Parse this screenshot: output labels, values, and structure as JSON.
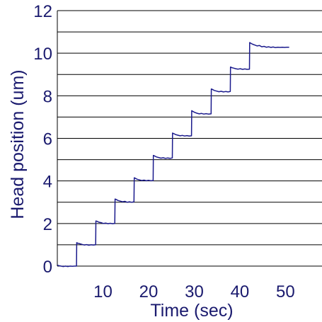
{
  "chart_data": {
    "type": "line",
    "title": "",
    "xlabel": "Time (sec)",
    "ylabel": "Head position (um)",
    "xlim": [
      0,
      58
    ],
    "ylim": [
      0,
      12
    ],
    "x_ticks": [
      10,
      20,
      30,
      40,
      50
    ],
    "x_tick_labels": [
      "10",
      "20",
      "30",
      "40",
      "50"
    ],
    "y_ticks": [
      0,
      2,
      4,
      6,
      8,
      10,
      12
    ],
    "y_tick_labels": [
      "0",
      "2",
      "4",
      "6",
      "8",
      "10",
      "12"
    ],
    "grid": {
      "horizontal": true,
      "vertical": false,
      "step": 1
    },
    "colors": {
      "series": "#1a1a8c",
      "text": "#1a1a6e",
      "grid": "#000000"
    },
    "series": [
      {
        "x": [
          0,
          0.3,
          0.8,
          1.3,
          1.8,
          2.3,
          2.8,
          3.3,
          3.8,
          4.2,
          4.25,
          4.55,
          4.9,
          5.4,
          5.9,
          6.4,
          6.9,
          7.4,
          7.9,
          8.4,
          8.45,
          8.75,
          9.1,
          9.6,
          10.1,
          10.6,
          11.1,
          11.6,
          12.1,
          12.6,
          12.65,
          12.95,
          13.3,
          13.8,
          14.3,
          14.8,
          15.3,
          15.8,
          16.3,
          16.8,
          16.85,
          17.15,
          17.5,
          18.0,
          18.5,
          19.0,
          19.5,
          20.0,
          20.5,
          21.0,
          21.05,
          21.35,
          21.7,
          22.2,
          22.7,
          23.2,
          23.7,
          24.2,
          24.7,
          25.2,
          25.25,
          25.55,
          25.9,
          26.4,
          26.9,
          27.4,
          27.9,
          28.4,
          28.9,
          29.4,
          29.45,
          29.75,
          30.1,
          30.6,
          31.1,
          31.6,
          32.1,
          32.6,
          33.1,
          33.7,
          33.75,
          34.05,
          34.4,
          34.9,
          35.4,
          35.9,
          36.4,
          36.9,
          37.4,
          37.9,
          37.95,
          38.25,
          38.6,
          39.1,
          39.6,
          40.1,
          40.6,
          41.1,
          41.6,
          42.1,
          42.15,
          42.45,
          42.8,
          43.3,
          43.8,
          44.3,
          44.8,
          45.3,
          45.8,
          46.3,
          46.8,
          47.3,
          47.8,
          48.3,
          48.8,
          49.3,
          49.8,
          50.3,
          50.8
        ],
        "y": [
          0.05,
          0.02,
          0.0,
          -0.02,
          0.0,
          -0.02,
          0.0,
          -0.01,
          0.0,
          0.0,
          1.1,
          1.07,
          1.05,
          1.02,
          0.99,
          1.01,
          0.98,
          1.0,
          0.99,
          1.0,
          2.12,
          2.1,
          2.06,
          2.04,
          2.0,
          2.02,
          1.99,
          2.01,
          1.99,
          2.0,
          3.15,
          3.12,
          3.08,
          3.05,
          3.02,
          3.04,
          3.0,
          3.02,
          3.0,
          3.02,
          4.15,
          4.12,
          4.08,
          4.05,
          4.02,
          4.04,
          4.01,
          4.03,
          4.01,
          4.02,
          5.2,
          5.17,
          5.13,
          5.1,
          5.07,
          5.09,
          5.06,
          5.08,
          5.06,
          5.08,
          6.25,
          6.22,
          6.18,
          6.15,
          6.12,
          6.14,
          6.11,
          6.13,
          6.11,
          6.12,
          7.3,
          7.26,
          7.22,
          7.18,
          7.15,
          7.17,
          7.14,
          7.16,
          7.14,
          7.15,
          8.32,
          8.29,
          8.25,
          8.22,
          8.19,
          8.21,
          8.18,
          8.2,
          8.18,
          8.2,
          9.35,
          9.32,
          9.3,
          9.27,
          9.25,
          9.27,
          9.24,
          9.26,
          9.24,
          9.25,
          10.5,
          10.46,
          10.42,
          10.38,
          10.34,
          10.36,
          10.3,
          10.32,
          10.28,
          10.3,
          10.27,
          10.29,
          10.26,
          10.28,
          10.27,
          10.28,
          10.27,
          10.28,
          10.28
        ]
      }
    ]
  }
}
